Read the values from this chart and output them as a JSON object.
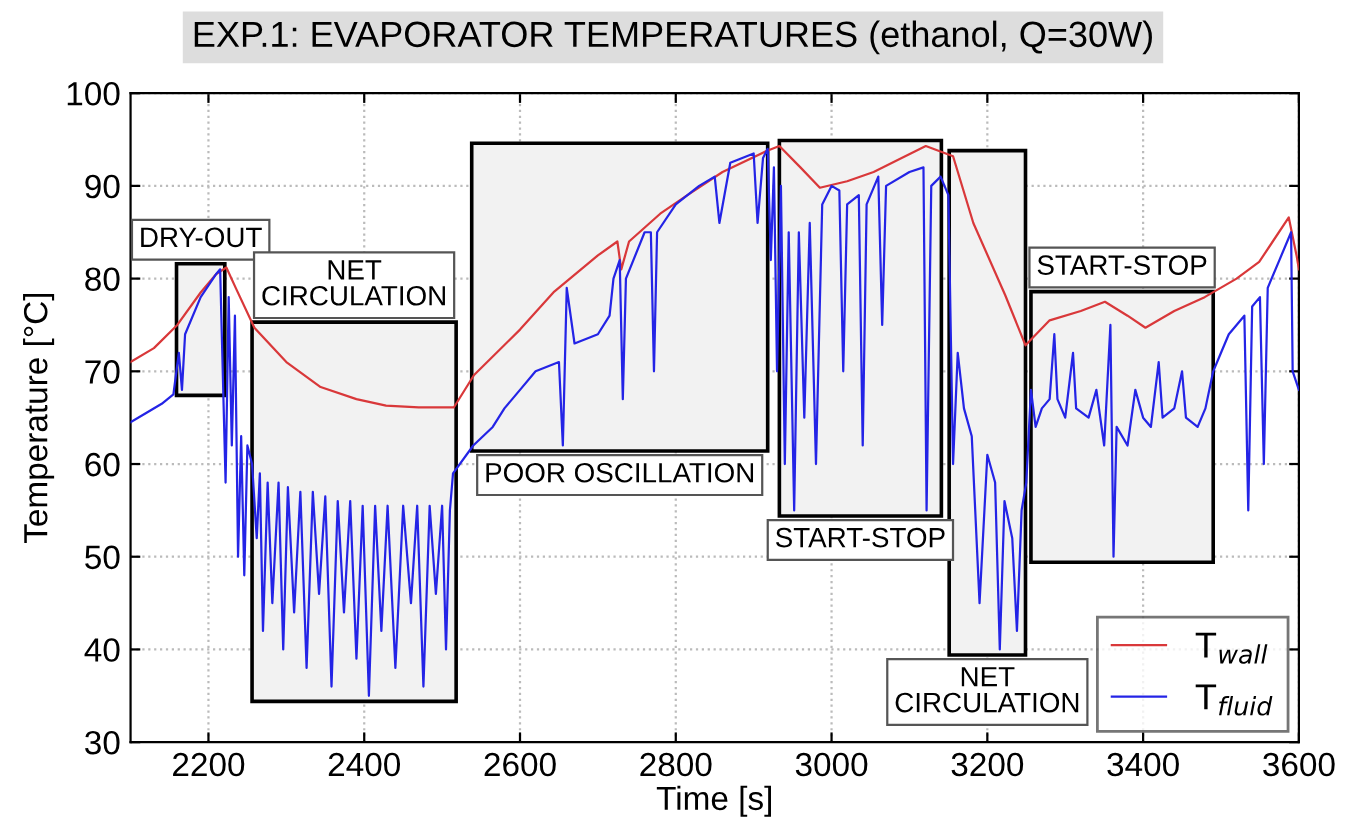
{
  "chart_data": {
    "type": "line",
    "title": "EXP.1: EVAPORATOR TEMPERATURES (ethanol, Q=30W)",
    "xlabel": "Time [s]",
    "ylabel": "Temperature [°C]",
    "xlim": [
      2100,
      3600
    ],
    "xticks": [
      2200,
      2400,
      2600,
      2800,
      3000,
      3200,
      3400,
      3600
    ],
    "ylim": [
      30,
      100
    ],
    "yticks": [
      30,
      40,
      50,
      60,
      70,
      80,
      90,
      100
    ],
    "grid": true,
    "legend": "bottom right",
    "line_style": "solid",
    "marker": "none",
    "series": [
      {
        "name": "T$_{wall}$",
        "color": "#d9383a",
        "x": [
          2100,
          2130,
          2160,
          2190,
          2210,
          2223,
          2235,
          2259,
          2300,
          2344,
          2390,
          2428,
          2470,
          2515,
          2541,
          2600,
          2644,
          2700,
          2725,
          2730,
          2740,
          2780,
          2813,
          2860,
          2915,
          2933,
          2960,
          2985,
          3020,
          3054,
          3090,
          3121,
          3156,
          3182,
          3223,
          3249,
          3280,
          3320,
          3351,
          3380,
          3403,
          3440,
          3479,
          3520,
          3549,
          3587,
          3597,
          3600
        ],
        "values": [
          71,
          72.5,
          75,
          78.5,
          80.5,
          81.2,
          79,
          74.7,
          71,
          68.3,
          67,
          66.3,
          66.1,
          66.1,
          69.6,
          74.5,
          78.6,
          82.5,
          84,
          81,
          84,
          87,
          88.9,
          91.5,
          93.7,
          94.3,
          92,
          89.8,
          90.5,
          91.5,
          93,
          94.3,
          93.2,
          86,
          78.2,
          72.8,
          75.5,
          76.5,
          77.5,
          76,
          74.7,
          76.5,
          78,
          80,
          81.8,
          86.6,
          82.5,
          81
        ]
      },
      {
        "name": "T$_{fluid}$",
        "color": "#2424e6",
        "x": [
          2100,
          2120,
          2140,
          2155,
          2162,
          2166,
          2170,
          2190,
          2210,
          2215,
          2222,
          2226,
          2230,
          2234,
          2238,
          2242,
          2246,
          2250,
          2256,
          2262,
          2266,
          2270,
          2276,
          2282,
          2290,
          2296,
          2302,
          2310,
          2318,
          2326,
          2334,
          2342,
          2350,
          2358,
          2366,
          2374,
          2382,
          2390,
          2398,
          2406,
          2414,
          2422,
          2430,
          2440,
          2450,
          2460,
          2468,
          2476,
          2484,
          2492,
          2500,
          2505,
          2510,
          2514,
          2540,
          2565,
          2580,
          2600,
          2620,
          2650,
          2655,
          2660,
          2670,
          2700,
          2715,
          2720,
          2728,
          2732,
          2736,
          2760,
          2768,
          2772,
          2776,
          2800,
          2830,
          2850,
          2856,
          2870,
          2900,
          2905,
          2912,
          2918,
          2922,
          2926,
          2930,
          2935,
          2940,
          2945,
          2952,
          2958,
          2965,
          2972,
          2980,
          2988,
          3000,
          3010,
          3015,
          3020,
          3035,
          3040,
          3045,
          3060,
          3065,
          3070,
          3100,
          3118,
          3122,
          3128,
          3140,
          3150,
          3156,
          3162,
          3170,
          3180,
          3190,
          3200,
          3210,
          3216,
          3222,
          3232,
          3238,
          3244,
          3250,
          3256,
          3262,
          3270,
          3280,
          3286,
          3290,
          3300,
          3310,
          3314,
          3330,
          3340,
          3350,
          3358,
          3362,
          3366,
          3380,
          3390,
          3400,
          3410,
          3420,
          3425,
          3440,
          3450,
          3455,
          3470,
          3480,
          3490,
          3500,
          3510,
          3520,
          3530,
          3535,
          3540,
          3550,
          3555,
          3560,
          3575,
          3590,
          3592,
          3600
        ],
        "values": [
          64.5,
          65.5,
          66.5,
          67.5,
          72,
          68,
          74,
          78,
          80.5,
          81,
          58,
          78,
          62,
          76,
          50,
          63,
          48,
          62,
          60,
          52,
          59,
          42,
          58,
          45,
          58,
          40,
          57.5,
          44,
          57,
          38,
          57,
          46,
          56.5,
          36,
          56,
          44,
          56,
          39,
          55.5,
          35,
          55.5,
          42,
          55.5,
          38,
          55.5,
          45,
          55.5,
          36,
          55.5,
          46,
          55.5,
          40,
          55,
          59,
          62,
          64,
          66,
          68,
          70,
          71,
          62,
          79,
          73,
          74,
          76,
          80,
          82,
          67,
          80,
          85,
          85,
          70,
          85,
          88,
          90,
          91,
          86,
          92.5,
          93.5,
          86,
          93,
          94,
          82,
          92,
          70,
          90,
          60,
          85,
          55,
          85,
          65,
          86,
          60,
          88,
          90,
          89.5,
          70,
          88,
          89,
          62,
          88,
          91,
          75,
          90,
          91.5,
          92,
          55,
          90,
          91,
          89,
          60,
          72,
          66,
          63,
          45,
          61,
          58,
          40,
          56,
          52,
          42,
          55,
          58,
          68,
          64,
          66,
          67,
          74,
          67,
          65,
          72,
          66,
          65,
          68,
          62,
          75,
          50,
          64,
          62,
          68,
          65,
          64,
          71,
          65,
          66,
          70,
          65,
          64,
          66,
          70,
          72,
          74,
          75,
          76,
          55,
          77,
          78,
          60,
          79,
          82,
          85,
          70,
          68
        ]
      }
    ],
    "bands": [
      {
        "axis": "x",
        "from": 2159,
        "to": 2221,
        "label": "DRY-OUT",
        "color": "#f2f2f2"
      },
      {
        "axis": "x",
        "from": 2256,
        "to": 2518,
        "label": "NET\nCIRCULATION",
        "color": "#f2f2f2"
      },
      {
        "axis": "x",
        "from": 2538,
        "to": 2918,
        "label": "POOR OSCILLATION",
        "color": "#f2f2f2"
      },
      {
        "axis": "x",
        "from": 2933,
        "to": 3141,
        "label": "START-STOP",
        "color": "#f2f2f2"
      },
      {
        "axis": "x",
        "from": 3151,
        "to": 3249,
        "label": "NET\nCIRCULATION",
        "color": "#f2f2f2"
      },
      {
        "axis": "x",
        "from": 3256,
        "to": 3490,
        "label": "START-STOP",
        "color": "#f2f2f2"
      }
    ]
  }
}
